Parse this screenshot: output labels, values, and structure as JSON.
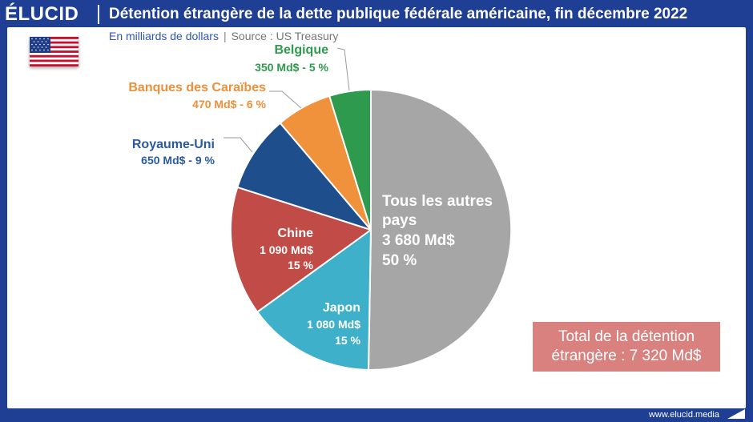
{
  "header": {
    "logo": "ÉLUCID",
    "title": "Détention étrangère de la dette publique fédérale américaine, fin décembre 2022"
  },
  "subtitle": {
    "units": "En milliards de dollars",
    "separator": "|",
    "source": "Source : US Treasury"
  },
  "flag": {
    "icon": "us-flag-icon"
  },
  "chart_data": {
    "type": "pie",
    "title": "",
    "unit": "Md$",
    "start_angle_deg": 0,
    "direction": "clockwise",
    "slices": [
      {
        "label": "Tous les autres pays",
        "value": 3680,
        "value_label": "3 680 Md$",
        "percent_label": "50 %",
        "color": "#a6a6a6",
        "label_color": "#ffffff"
      },
      {
        "label": "Japon",
        "value": 1080,
        "value_label": "1 080 Md$",
        "percent_label": "15 %",
        "color": "#3fb0c9",
        "label_color": "#ffffff"
      },
      {
        "label": "Chine",
        "value": 1090,
        "value_label": "1 090 Md$",
        "percent_label": "15 %",
        "color": "#c14b47",
        "label_color": "#ffffff"
      },
      {
        "label": "Royaume-Uni",
        "value": 650,
        "value_label": "650 Md$ - 9 %",
        "percent_label": "9 %",
        "color": "#1f4e8c",
        "label_color": "#2a5aa0"
      },
      {
        "label": "Banques des Caraïbes",
        "value": 470,
        "value_label": "470 Md$ - 6 %",
        "percent_label": "6 %",
        "color": "#f0913b",
        "label_color": "#ef8f3a"
      },
      {
        "label": "Belgique",
        "value": 350,
        "value_label": "350 Md$ - 5 %",
        "percent_label": "5 %",
        "color": "#2e9a4d",
        "label_color": "#2e9a4d"
      }
    ]
  },
  "total": {
    "line1": "Total de la détention",
    "line2": "étrangère : 7 320 Md$",
    "color": "#d9817f"
  },
  "footer": {
    "url": "www.elucid.media"
  }
}
